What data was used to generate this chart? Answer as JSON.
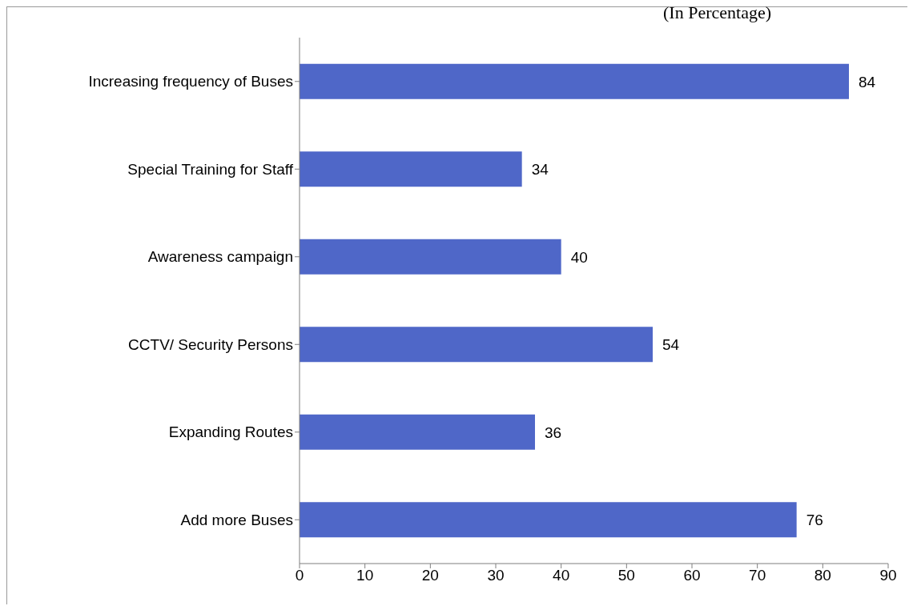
{
  "chart_data": {
    "type": "bar",
    "orientation": "horizontal",
    "subtitle": "(In Percentage)",
    "categories": [
      "Increasing frequency of Buses",
      "Special Training for Staff",
      "Awareness campaign",
      "CCTV/ Security Persons",
      "Expanding Routes",
      "Add more Buses"
    ],
    "values": [
      84,
      34,
      40,
      54,
      36,
      76
    ],
    "color": "#4f67c8",
    "xlim": [
      0,
      90
    ],
    "xticks": [
      0,
      10,
      20,
      30,
      40,
      50,
      60,
      70,
      80,
      90
    ],
    "grid": false,
    "data_labels": true
  }
}
